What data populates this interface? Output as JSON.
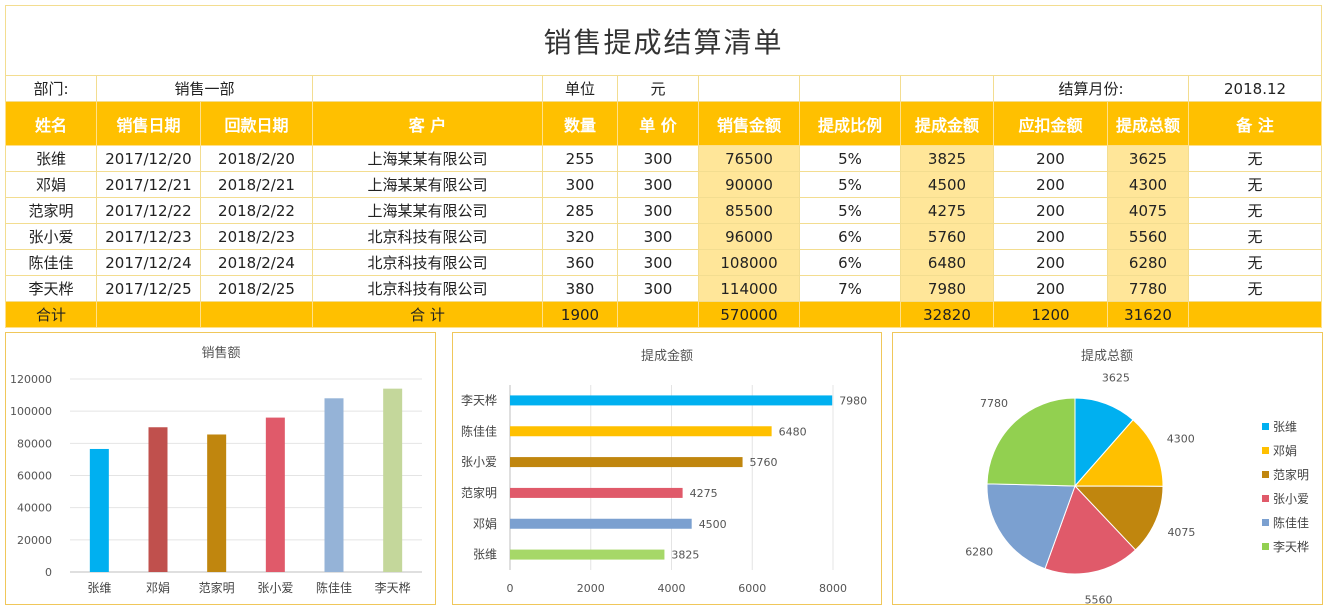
{
  "title": "销售提成结算清单",
  "info": {
    "dept_label": "部门:",
    "dept_value": "销售一部",
    "unit_label": "单位",
    "unit_value": "元",
    "month_label": "结算月份:",
    "month_value": "2018.12"
  },
  "columns": [
    "姓名",
    "销售日期",
    "回款日期",
    "客  户",
    "数量",
    "单 价",
    "销售金额",
    "提成比例",
    "提成金额",
    "应扣金额",
    "提成总额",
    "备  注"
  ],
  "rows": [
    [
      "张维",
      "2017/12/20",
      "2018/2/20",
      "上海某某有限公司",
      "255",
      "300",
      "76500",
      "5%",
      "3825",
      "200",
      "3625",
      "无"
    ],
    [
      "邓娟",
      "2017/12/21",
      "2018/2/21",
      "上海某某有限公司",
      "300",
      "300",
      "90000",
      "5%",
      "4500",
      "200",
      "4300",
      "无"
    ],
    [
      "范家明",
      "2017/12/22",
      "2018/2/22",
      "上海某某有限公司",
      "285",
      "300",
      "85500",
      "5%",
      "4275",
      "200",
      "4075",
      "无"
    ],
    [
      "张小爱",
      "2017/12/23",
      "2018/2/23",
      "北京科技有限公司",
      "320",
      "300",
      "96000",
      "6%",
      "5760",
      "200",
      "5560",
      "无"
    ],
    [
      "陈佳佳",
      "2017/12/24",
      "2018/2/24",
      "北京科技有限公司",
      "360",
      "300",
      "108000",
      "6%",
      "6480",
      "200",
      "6280",
      "无"
    ],
    [
      "李天桦",
      "2017/12/25",
      "2018/2/25",
      "北京科技有限公司",
      "380",
      "300",
      "114000",
      "7%",
      "7980",
      "200",
      "7780",
      "无"
    ]
  ],
  "totals": {
    "label": "合计",
    "customer_label": "合    计",
    "quantity": "1900",
    "sales": "570000",
    "commission": "32820",
    "deduction": "1200",
    "total": "31620"
  },
  "chart_data": [
    {
      "type": "bar",
      "title": "销售额",
      "categories": [
        "张维",
        "邓娟",
        "范家明",
        "张小爱",
        "陈佳佳",
        "李天桦"
      ],
      "values": [
        76500,
        90000,
        85500,
        96000,
        108000,
        114000
      ],
      "colors": [
        "#00b0f0",
        "#c0504d",
        "#c0860e",
        "#e05a6a",
        "#95b3d7",
        "#c4d79b"
      ],
      "ylim": [
        0,
        120000
      ],
      "yticks": [
        0,
        20000,
        40000,
        60000,
        80000,
        100000,
        120000
      ],
      "grid": true
    },
    {
      "type": "bar",
      "orientation": "horizontal",
      "title": "提成金额",
      "categories": [
        "李天桦",
        "陈佳佳",
        "张小爱",
        "范家明",
        "邓娟",
        "张维"
      ],
      "values": [
        7980,
        6480,
        5760,
        4275,
        4500,
        3825
      ],
      "colors": [
        "#00b0f0",
        "#ffc000",
        "#c0860e",
        "#e05a6a",
        "#7ba0d0",
        "#a6d868"
      ],
      "xlim": [
        0,
        8000
      ],
      "xticks": [
        0,
        2000,
        4000,
        6000,
        8000
      ],
      "grid": true
    },
    {
      "type": "pie",
      "title": "提成总额",
      "labels": [
        "张维",
        "邓娟",
        "范家明",
        "张小爱",
        "陈佳佳",
        "李天桦"
      ],
      "values": [
        3625,
        4300,
        4075,
        5560,
        6280,
        7780
      ],
      "colors": [
        "#00b0f0",
        "#ffc000",
        "#c0860e",
        "#e05a6a",
        "#7ba0d0",
        "#92d050"
      ],
      "legend": "right"
    }
  ]
}
